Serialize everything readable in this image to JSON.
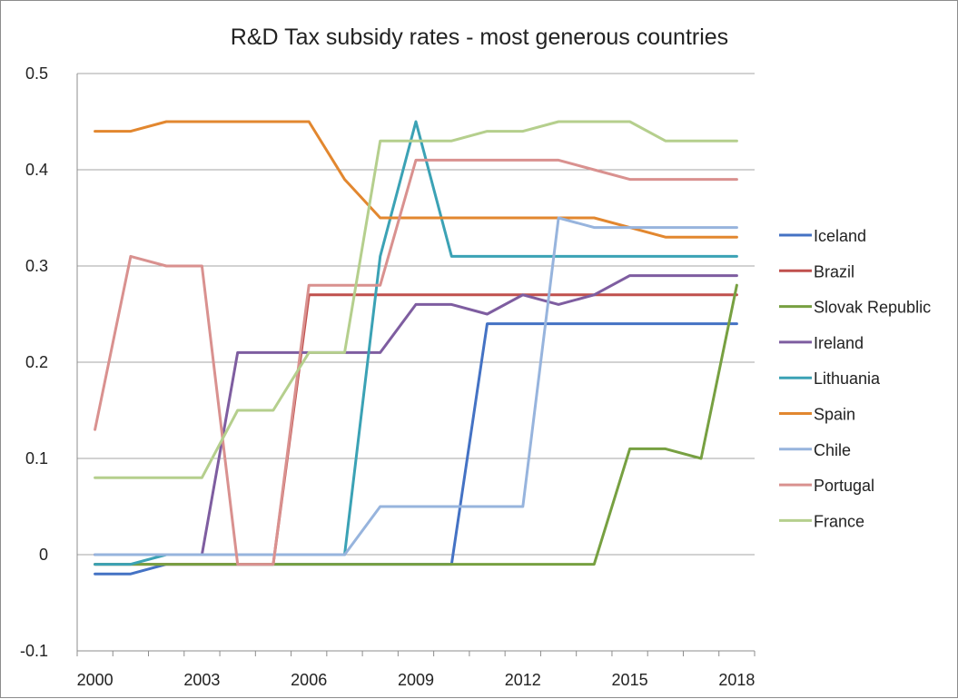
{
  "chart_data": {
    "type": "line",
    "title": "R&D Tax subsidy rates - most generous countries",
    "xlabel": "",
    "ylabel": "",
    "x": [
      2000,
      2001,
      2002,
      2003,
      2004,
      2005,
      2006,
      2007,
      2008,
      2009,
      2010,
      2011,
      2012,
      2013,
      2014,
      2015,
      2016,
      2017,
      2018
    ],
    "x_tick_labels": [
      "2000",
      "2003",
      "2006",
      "2009",
      "2012",
      "2015",
      "2018"
    ],
    "x_tick_values": [
      2000,
      2003,
      2006,
      2009,
      2012,
      2015,
      2018
    ],
    "y_tick_labels": [
      "-0.1",
      "0",
      "0.1",
      "0.2",
      "0.3",
      "0.4",
      "0.5"
    ],
    "y_tick_values": [
      -0.1,
      0,
      0.1,
      0.2,
      0.3,
      0.4,
      0.5
    ],
    "ylim": [
      -0.1,
      0.5
    ],
    "grid": "horizontal",
    "legend_position": "right",
    "series": [
      {
        "name": "Iceland",
        "color": "#4472c4",
        "values": [
          -0.02,
          -0.02,
          -0.01,
          -0.01,
          -0.01,
          -0.01,
          -0.01,
          -0.01,
          -0.01,
          -0.01,
          -0.01,
          0.24,
          0.24,
          0.24,
          0.24,
          0.24,
          0.24,
          0.24,
          0.24
        ]
      },
      {
        "name": "Brazil",
        "color": "#c0504d",
        "values": [
          -0.01,
          -0.01,
          -0.01,
          -0.01,
          -0.01,
          -0.01,
          0.27,
          0.27,
          0.27,
          0.27,
          0.27,
          0.27,
          0.27,
          0.27,
          0.27,
          0.27,
          0.27,
          0.27,
          0.27
        ]
      },
      {
        "name": "Slovak Republic",
        "color": "#77a041",
        "values": [
          -0.01,
          -0.01,
          -0.01,
          -0.01,
          -0.01,
          -0.01,
          -0.01,
          -0.01,
          -0.01,
          -0.01,
          -0.01,
          -0.01,
          -0.01,
          -0.01,
          -0.01,
          0.11,
          0.11,
          0.1,
          0.28
        ]
      },
      {
        "name": "Ireland",
        "color": "#7e5da0",
        "values": [
          0,
          0,
          0,
          0,
          0.21,
          0.21,
          0.21,
          0.21,
          0.21,
          0.26,
          0.26,
          0.25,
          0.27,
          0.26,
          0.27,
          0.29,
          0.29,
          0.29,
          0.29
        ]
      },
      {
        "name": "Lithuania",
        "color": "#3ba2b5",
        "values": [
          -0.01,
          -0.01,
          0,
          0,
          0,
          0,
          0,
          0,
          0.31,
          0.45,
          0.31,
          0.31,
          0.31,
          0.31,
          0.31,
          0.31,
          0.31,
          0.31,
          0.31
        ]
      },
      {
        "name": "Spain",
        "color": "#e2872f",
        "values": [
          0.44,
          0.44,
          0.45,
          0.45,
          0.45,
          0.45,
          0.45,
          0.39,
          0.35,
          0.35,
          0.35,
          0.35,
          0.35,
          0.35,
          0.35,
          0.34,
          0.33,
          0.33,
          0.33
        ]
      },
      {
        "name": "Chile",
        "color": "#97b4dd",
        "values": [
          0,
          0,
          0,
          0,
          0,
          0,
          0,
          0,
          0.05,
          0.05,
          0.05,
          0.05,
          0.05,
          0.35,
          0.34,
          0.34,
          0.34,
          0.34,
          0.34
        ]
      },
      {
        "name": "Portugal",
        "color": "#d9918f",
        "values": [
          0.13,
          0.31,
          0.3,
          0.3,
          -0.01,
          -0.01,
          0.28,
          0.28,
          0.28,
          0.41,
          0.41,
          0.41,
          0.41,
          0.41,
          0.4,
          0.39,
          0.39,
          0.39,
          0.39
        ]
      },
      {
        "name": "France",
        "color": "#b5cf8d",
        "values": [
          0.08,
          0.08,
          0.08,
          0.08,
          0.15,
          0.15,
          0.21,
          0.21,
          0.43,
          0.43,
          0.43,
          0.44,
          0.44,
          0.45,
          0.45,
          0.45,
          0.43,
          0.43,
          0.43
        ]
      }
    ]
  }
}
